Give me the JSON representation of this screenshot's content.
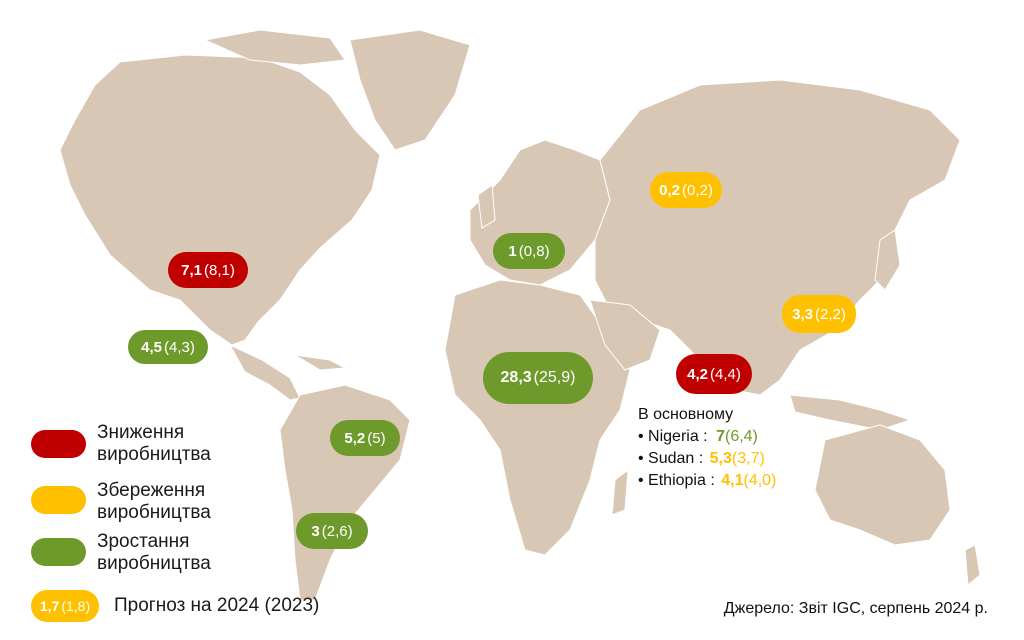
{
  "colors": {
    "land": "#d9c7b5",
    "decrease": "#c00000",
    "stable": "#ffc000",
    "growth": "#6e9a2c"
  },
  "markers": [
    {
      "id": "usa",
      "value": "7,1",
      "prev": "(8,1)",
      "status": "decrease"
    },
    {
      "id": "mexico",
      "value": "4,5",
      "prev": "(4,3)",
      "status": "growth"
    },
    {
      "id": "brazil",
      "value": "5,2",
      "prev": "(5)",
      "status": "growth"
    },
    {
      "id": "argentina",
      "value": "3",
      "prev": "(2,6)",
      "status": "growth"
    },
    {
      "id": "europe",
      "value": "1",
      "prev": "(0,8)",
      "status": "growth"
    },
    {
      "id": "africa",
      "value": "28,3",
      "prev": "(25,9)",
      "status": "growth"
    },
    {
      "id": "russia",
      "value": "0,2",
      "prev": "(0,2)",
      "status": "stable"
    },
    {
      "id": "india",
      "value": "4,2",
      "prev": "(4,4)",
      "status": "decrease"
    },
    {
      "id": "china",
      "value": "3,3",
      "prev": "(2,2)",
      "status": "stable"
    }
  ],
  "africa_note": {
    "title": "В основному",
    "items": [
      {
        "country": "• Nigeria :",
        "value": "7",
        "prev": "(6,4)",
        "status": "growth"
      },
      {
        "country": "• Sudan :",
        "value": "5,3",
        "prev": "(3,7)",
        "status": "stable"
      },
      {
        "country": "• Ethiopia :",
        "value": "4,1",
        "prev": "(4,0)",
        "status": "stable"
      }
    ]
  },
  "legend": {
    "decrease": [
      "Зниження",
      "виробництва"
    ],
    "stable": [
      "Збереження",
      "виробництва"
    ],
    "growth": [
      "Зростання",
      "виробництва"
    ],
    "sample_value": "1,7",
    "sample_prev": "(1,8)",
    "forecast_label": "Прогноз на 2024 (2023)"
  },
  "source": "Джерело: Звіт IGC, серпень 2024 р."
}
